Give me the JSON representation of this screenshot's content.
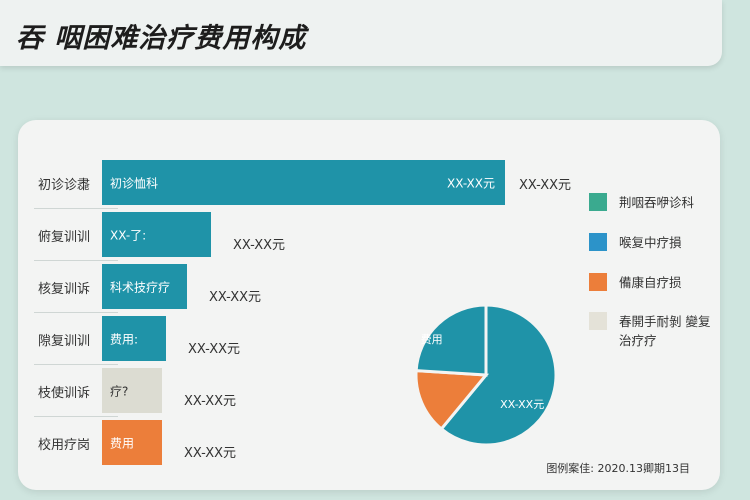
{
  "title": "吞 咽困难治疗费用构成",
  "chart_data": [
    {
      "type": "bar",
      "orientation": "horizontal",
      "categories": [
        "初诊诊䏋",
        "俯复训训",
        "核复训诉",
        "隙复训训",
        "枝使训诉",
        "校用疗岗"
      ],
      "values": [
        100,
        27,
        21,
        16,
        15,
        15
      ],
      "inner_labels": [
        "初诊恤科",
        "XX-了:",
        "科术技疗疗",
        "费用:",
        "疗?",
        "费用"
      ],
      "end_labels": [
        "XX-XX元",
        "",
        "",
        "",
        "",
        ""
      ],
      "value_labels": [
        "XX-XX元",
        "XX-XX元",
        "XX-XX元",
        "XX-XX元",
        "XX-XX元",
        "XX-XX元"
      ],
      "colors": [
        "#1f93a8",
        "#1f93a8",
        "#1f93a8",
        "#1f93a8",
        "#dcdcd2",
        "#ec7e3a"
      ]
    },
    {
      "type": "pie",
      "slices": [
        {
          "label": "XX-XX元",
          "value": 61,
          "color": "#1f93a8"
        },
        {
          "label": "",
          "value": 15,
          "color": "#ec7e3a"
        },
        {
          "label": "费用",
          "value": 24,
          "color": "#1f93a8"
        }
      ],
      "legend": [
        {
          "label": "荆咽吞咿诊科",
          "color": "#3aaa8f"
        },
        {
          "label": "喉复中疗損",
          "color": "#2c93c9"
        },
        {
          "label": "備康自疗损",
          "color": "#ec7e3a"
        },
        {
          "label": "春開手耐剝 變复治疗疗",
          "color": "#e4e2d8"
        }
      ]
    }
  ],
  "note": "图例案佳: 2020.13卿期13目"
}
